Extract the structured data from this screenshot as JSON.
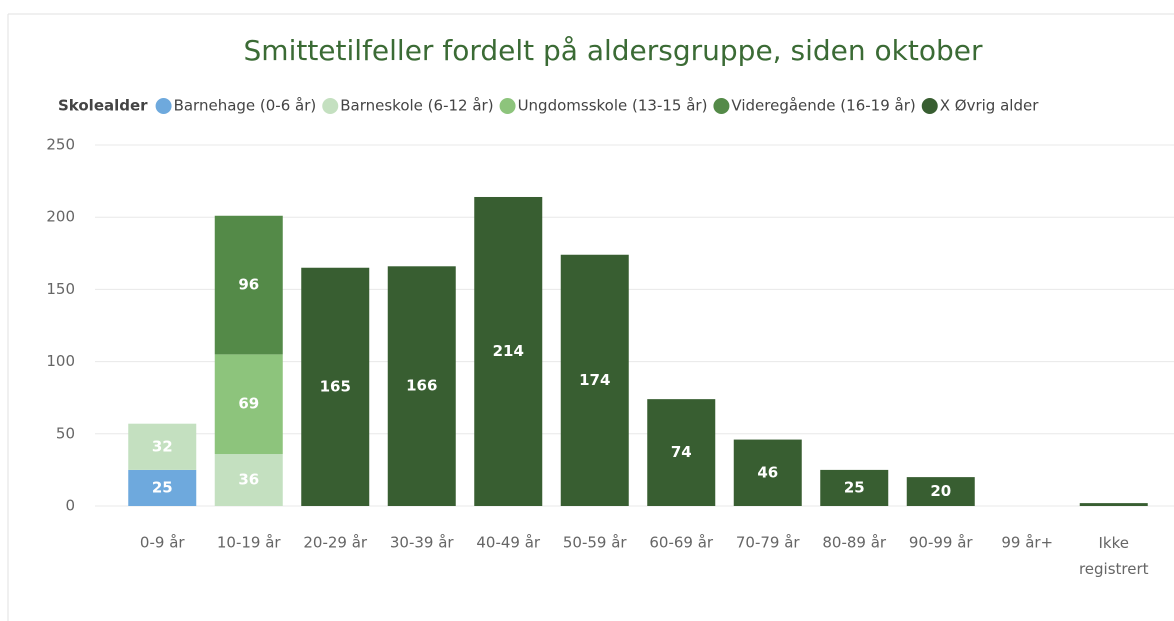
{
  "chart_data": {
    "type": "stacked_bar",
    "title": "Smittetilfeller fordelt på aldersgruppe, siden oktober",
    "legend_title": "Skolealder",
    "categories": [
      "0-9 år",
      "10-19 år",
      "20-29 år",
      "30-39 år",
      "40-49 år",
      "50-59 år",
      "60-69 år",
      "70-79 år",
      "80-89 år",
      "90-99 år",
      "99 år+",
      "Ikke registrert"
    ],
    "series": [
      {
        "name": "Barnehage (0-6 år)",
        "color": "#6ea9dd",
        "values": [
          25,
          null,
          null,
          null,
          null,
          null,
          null,
          null,
          null,
          null,
          null,
          null
        ]
      },
      {
        "name": "Barneskole (6-12 år)",
        "color": "#c4e0c0",
        "values": [
          32,
          36,
          null,
          null,
          null,
          null,
          null,
          null,
          null,
          null,
          null,
          null
        ]
      },
      {
        "name": "Ungdomsskole (13-15 år)",
        "color": "#8dc47c",
        "values": [
          null,
          69,
          null,
          null,
          null,
          null,
          null,
          null,
          null,
          null,
          null,
          null
        ]
      },
      {
        "name": "Videregående (16-19 år)",
        "color": "#548a48",
        "values": [
          null,
          96,
          null,
          null,
          null,
          null,
          null,
          null,
          null,
          null,
          null,
          null
        ]
      },
      {
        "name": "X Øvrig alder",
        "color": "#385e31",
        "values": [
          null,
          null,
          165,
          166,
          214,
          174,
          74,
          46,
          25,
          20,
          null,
          2
        ]
      }
    ],
    "ylim": [
      0,
      250
    ],
    "yticks": [
      0,
      50,
      100,
      150,
      200,
      250
    ],
    "grid": true
  }
}
